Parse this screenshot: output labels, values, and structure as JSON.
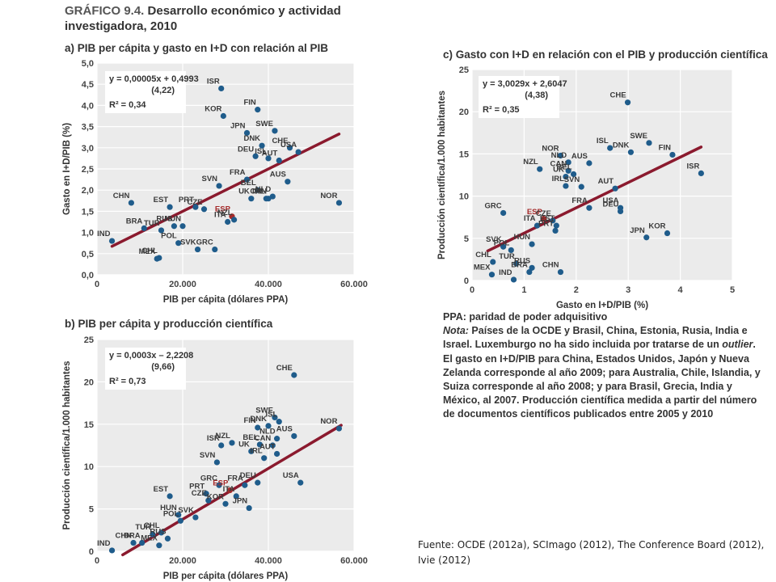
{
  "heading": {
    "label": "GRÁFICO 9.4.",
    "title": "Desarrollo económico y actividad investigadora, 2010"
  },
  "chart_data": [
    {
      "id": "a",
      "type": "scatter",
      "title": "a) PIB per cápita y gasto en I+D con relación al PIB",
      "xlabel": "PIB per cápita (dólares PPA)",
      "ylabel": "Gasto en I+D/PIB (%)",
      "xlim": [
        0,
        60000
      ],
      "ylim": [
        0,
        5
      ],
      "xticks": [
        0,
        20000,
        40000,
        60000
      ],
      "xtick_labels": [
        "0",
        "20.000",
        "40.000",
        "60.000"
      ],
      "yticks": [
        0,
        0.5,
        1,
        1.5,
        2,
        2.5,
        3,
        3.5,
        4,
        4.5,
        5
      ],
      "ytick_labels": [
        "0,0",
        "0,5",
        "1,0",
        "1,5",
        "2,0",
        "2,5",
        "3,0",
        "3,5",
        "4,0",
        "4,5",
        "5,0"
      ],
      "trend": {
        "slope": 5e-05,
        "intercept": 0.4993,
        "x_range": [
          3500,
          56500
        ]
      },
      "equation": "y = 0,00005x + 0,4993",
      "tstat": "(4,22)",
      "r2": "R² = 0,34",
      "points": [
        {
          "label": "ISR",
          "x": 29000,
          "y": 4.4
        },
        {
          "label": "KOR",
          "x": 29500,
          "y": 3.75
        },
        {
          "label": "FIN",
          "x": 37500,
          "y": 3.9
        },
        {
          "label": "JPN",
          "x": 35000,
          "y": 3.35
        },
        {
          "label": "SWE",
          "x": 41500,
          "y": 3.4
        },
        {
          "label": "CHE",
          "x": 45000,
          "y": 3.0
        },
        {
          "label": "USA",
          "x": 47000,
          "y": 2.9
        },
        {
          "label": "DNK",
          "x": 38500,
          "y": 3.05
        },
        {
          "label": "DEU",
          "x": 37000,
          "y": 2.8
        },
        {
          "label": "ISL",
          "x": 40000,
          "y": 2.75
        },
        {
          "label": "AUT",
          "x": 42500,
          "y": 2.7
        },
        {
          "label": "AUS",
          "x": 44500,
          "y": 2.2
        },
        {
          "label": "FRA",
          "x": 35000,
          "y": 2.25
        },
        {
          "label": "SVN",
          "x": 28500,
          "y": 2.1
        },
        {
          "label": "BEL",
          "x": 37500,
          "y": 2.0
        },
        {
          "label": "NLD",
          "x": 41000,
          "y": 1.85
        },
        {
          "label": "IRL",
          "x": 39500,
          "y": 1.8
        },
        {
          "label": "UK",
          "x": 36000,
          "y": 1.8
        },
        {
          "label": "CAN",
          "x": 40000,
          "y": 1.8
        },
        {
          "label": "NOR",
          "x": 56500,
          "y": 1.7
        },
        {
          "label": "CHN",
          "x": 8000,
          "y": 1.7
        },
        {
          "label": "EST",
          "x": 17000,
          "y": 1.6
        },
        {
          "label": "CZE",
          "x": 25000,
          "y": 1.55
        },
        {
          "label": "PRT",
          "x": 23000,
          "y": 1.6
        },
        {
          "label": "ESP",
          "x": 31500,
          "y": 1.38
        },
        {
          "label": "NZL",
          "x": 32000,
          "y": 1.3
        },
        {
          "label": "ITA",
          "x": 30500,
          "y": 1.25
        },
        {
          "label": "RUS",
          "x": 18000,
          "y": 1.15
        },
        {
          "label": "BRA",
          "x": 11000,
          "y": 1.1
        },
        {
          "label": "TUR",
          "x": 15000,
          "y": 1.05
        },
        {
          "label": "HUN",
          "x": 20000,
          "y": 1.15
        },
        {
          "label": "POL",
          "x": 19000,
          "y": 0.75
        },
        {
          "label": "IND",
          "x": 3500,
          "y": 0.8
        },
        {
          "label": "GRC",
          "x": 27500,
          "y": 0.6
        },
        {
          "label": "SVK",
          "x": 23500,
          "y": 0.6
        },
        {
          "label": "CHL",
          "x": 14500,
          "y": 0.4
        },
        {
          "label": "MEX",
          "x": 14000,
          "y": 0.38
        }
      ]
    },
    {
      "id": "b",
      "type": "scatter",
      "title": "b) PIB per cápita y producción científica",
      "xlabel": "PIB per cápita (dólares PPA)",
      "ylabel": "Producción científica/1.000 habitantes",
      "xlim": [
        0,
        60000
      ],
      "ylim": [
        0,
        25
      ],
      "xticks": [
        0,
        20000,
        40000,
        60000
      ],
      "xtick_labels": [
        "0",
        "20.000",
        "40.000",
        "60.000"
      ],
      "yticks": [
        0,
        5,
        10,
        15,
        20,
        25
      ],
      "ytick_labels": [
        "0",
        "5",
        "10",
        "15",
        "20",
        "25"
      ],
      "trend": {
        "slope": 0.0003,
        "intercept": -2.2208,
        "x_range": [
          6000,
          57000
        ]
      },
      "equation": "y = 0,0003x – 2,2208",
      "tstat": "(9,66)",
      "r2": "R² = 0,73",
      "points": [
        {
          "label": "CHE",
          "x": 46000,
          "y": 20.8
        },
        {
          "label": "NOR",
          "x": 56500,
          "y": 14.5
        },
        {
          "label": "SWE",
          "x": 41500,
          "y": 15.8
        },
        {
          "label": "ISL",
          "x": 42500,
          "y": 15.3
        },
        {
          "label": "DNK",
          "x": 40000,
          "y": 14.8
        },
        {
          "label": "FIN",
          "x": 37500,
          "y": 14.6
        },
        {
          "label": "AUS",
          "x": 46000,
          "y": 13.6
        },
        {
          "label": "NLD",
          "x": 42000,
          "y": 13.3
        },
        {
          "label": "BEL",
          "x": 38000,
          "y": 12.6
        },
        {
          "label": "CAN",
          "x": 41000,
          "y": 12.5
        },
        {
          "label": "NZL",
          "x": 31500,
          "y": 12.8
        },
        {
          "label": "ISR",
          "x": 29000,
          "y": 12.5
        },
        {
          "label": "UK",
          "x": 36000,
          "y": 11.8
        },
        {
          "label": "AUT",
          "x": 42000,
          "y": 11.5
        },
        {
          "label": "IRL",
          "x": 39000,
          "y": 11.0
        },
        {
          "label": "SVN",
          "x": 28000,
          "y": 10.5
        },
        {
          "label": "USA",
          "x": 47500,
          "y": 8.1
        },
        {
          "label": "DEU",
          "x": 37500,
          "y": 8.1
        },
        {
          "label": "FRA",
          "x": 34500,
          "y": 7.8
        },
        {
          "label": "GRC",
          "x": 28500,
          "y": 7.8
        },
        {
          "label": "ESP",
          "x": 31000,
          "y": 7.2
        },
        {
          "label": "PRT",
          "x": 25500,
          "y": 6.8
        },
        {
          "label": "ITA",
          "x": 32500,
          "y": 6.5
        },
        {
          "label": "EST",
          "x": 17000,
          "y": 6.5
        },
        {
          "label": "CZE",
          "x": 26000,
          "y": 6.0
        },
        {
          "label": "KOR",
          "x": 30000,
          "y": 5.6
        },
        {
          "label": "JPN",
          "x": 35500,
          "y": 5.1
        },
        {
          "label": "HUN",
          "x": 19000,
          "y": 4.3
        },
        {
          "label": "SVK",
          "x": 23000,
          "y": 4.0
        },
        {
          "label": "POL",
          "x": 19500,
          "y": 3.6
        },
        {
          "label": "CHL",
          "x": 15000,
          "y": 2.2
        },
        {
          "label": "TUR",
          "x": 13000,
          "y": 2.0
        },
        {
          "label": "RUS",
          "x": 16500,
          "y": 1.5
        },
        {
          "label": "CHN",
          "x": 8500,
          "y": 1.0
        },
        {
          "label": "BRA",
          "x": 10500,
          "y": 1.0
        },
        {
          "label": "MEX",
          "x": 14500,
          "y": 0.7
        },
        {
          "label": "IND",
          "x": 3500,
          "y": 0.1
        }
      ]
    },
    {
      "id": "c",
      "type": "scatter",
      "title": "c) Gasto con I+D en relación con el PIB y producción científica",
      "xlabel": "Gasto en I+D/PIB (%)",
      "ylabel": "Producción científica/1.000 habitantes",
      "xlim": [
        0,
        5
      ],
      "ylim": [
        0,
        25
      ],
      "xticks": [
        0,
        1,
        2,
        3,
        4,
        5
      ],
      "xtick_labels": [
        "0",
        "1",
        "2",
        "3",
        "4",
        "5"
      ],
      "yticks": [
        0,
        5,
        10,
        15,
        20,
        25
      ],
      "ytick_labels": [
        "0",
        "5",
        "10",
        "15",
        "20",
        "25"
      ],
      "trend": {
        "slope": 3.0029,
        "intercept": 2.6047,
        "x_range": [
          0.3,
          4.4
        ]
      },
      "equation": "y = 3,0029x + 2,6047",
      "tstat": "(4,38)",
      "r2": "R² = 0,35",
      "points": [
        {
          "label": "CHE",
          "x": 2.99,
          "y": 21.1
        },
        {
          "label": "SWE",
          "x": 3.4,
          "y": 16.3
        },
        {
          "label": "FIN",
          "x": 3.85,
          "y": 14.9
        },
        {
          "label": "ISL",
          "x": 2.65,
          "y": 15.7
        },
        {
          "label": "DNK",
          "x": 3.05,
          "y": 15.2
        },
        {
          "label": "ISR",
          "x": 4.4,
          "y": 12.7
        },
        {
          "label": "NOR",
          "x": 1.7,
          "y": 14.8
        },
        {
          "label": "NLD",
          "x": 1.85,
          "y": 14.0
        },
        {
          "label": "AUS",
          "x": 2.25,
          "y": 13.9
        },
        {
          "label": "NZL",
          "x": 1.3,
          "y": 13.2
        },
        {
          "label": "CAN",
          "x": 1.85,
          "y": 13.0
        },
        {
          "label": "BEL",
          "x": 1.95,
          "y": 12.6
        },
        {
          "label": "UK",
          "x": 1.8,
          "y": 12.3
        },
        {
          "label": "IRL",
          "x": 1.8,
          "y": 11.2
        },
        {
          "label": "AUT",
          "x": 2.75,
          "y": 10.9
        },
        {
          "label": "SVN",
          "x": 2.1,
          "y": 11.1
        },
        {
          "label": "USA",
          "x": 2.85,
          "y": 8.6
        },
        {
          "label": "FRA",
          "x": 2.25,
          "y": 8.6
        },
        {
          "label": "DEU",
          "x": 2.85,
          "y": 8.2
        },
        {
          "label": "GRC",
          "x": 0.6,
          "y": 8.0
        },
        {
          "label": "ESP",
          "x": 1.38,
          "y": 7.3
        },
        {
          "label": "CZE",
          "x": 1.55,
          "y": 7.1
        },
        {
          "label": "EST",
          "x": 1.62,
          "y": 6.5
        },
        {
          "label": "ITA",
          "x": 1.25,
          "y": 6.5
        },
        {
          "label": "PRT",
          "x": 1.6,
          "y": 5.9
        },
        {
          "label": "KOR",
          "x": 3.75,
          "y": 5.6
        },
        {
          "label": "JPN",
          "x": 3.35,
          "y": 5.1
        },
        {
          "label": "HUN",
          "x": 1.15,
          "y": 4.3
        },
        {
          "label": "SVK",
          "x": 0.6,
          "y": 4.0
        },
        {
          "label": "POL",
          "x": 0.75,
          "y": 3.6
        },
        {
          "label": "CHL",
          "x": 0.4,
          "y": 2.2
        },
        {
          "label": "TUR",
          "x": 0.85,
          "y": 2.0
        },
        {
          "label": "RUS",
          "x": 1.15,
          "y": 1.5
        },
        {
          "label": "CHN",
          "x": 1.7,
          "y": 1.0
        },
        {
          "label": "BRA",
          "x": 1.1,
          "y": 1.0
        },
        {
          "label": "MEX",
          "x": 0.38,
          "y": 0.7
        },
        {
          "label": "IND",
          "x": 0.8,
          "y": 0.1
        }
      ]
    }
  ],
  "notes": {
    "ppa": "PPA: paridad de poder adquisitivo",
    "nota_label": "Nota:",
    "nota_text": " Países de la OCDE y Brasil, China, Estonia, Rusia, India e Israel. Luxemburgo no ha sido incluida por tratarse de un ",
    "outlier": "outlier",
    "nota_rest": ". El gasto en I+D/PIB para China, Estados Unidos, Japón y Nueva Zelanda corresponde al año 2009; para Australia, Chile, Islandia, y Suiza corresponde al año 2008; y para Brasil, Grecia, India y México, al 2007. Producción científica medida a partir del número de documentos científicos publicados entre 2005 y 2010"
  },
  "source": "Fuente: OCDE (2012a), SCImago (2012), The Conference Board (2012), Ivie (2012)",
  "colors": {
    "plot_bg": "#ebebeb",
    "grid": "#ffffff",
    "point": "#1f5c8b",
    "highlight": "#a52a2a",
    "trend": "#8b1a2e",
    "label": "#3a3a3a"
  }
}
